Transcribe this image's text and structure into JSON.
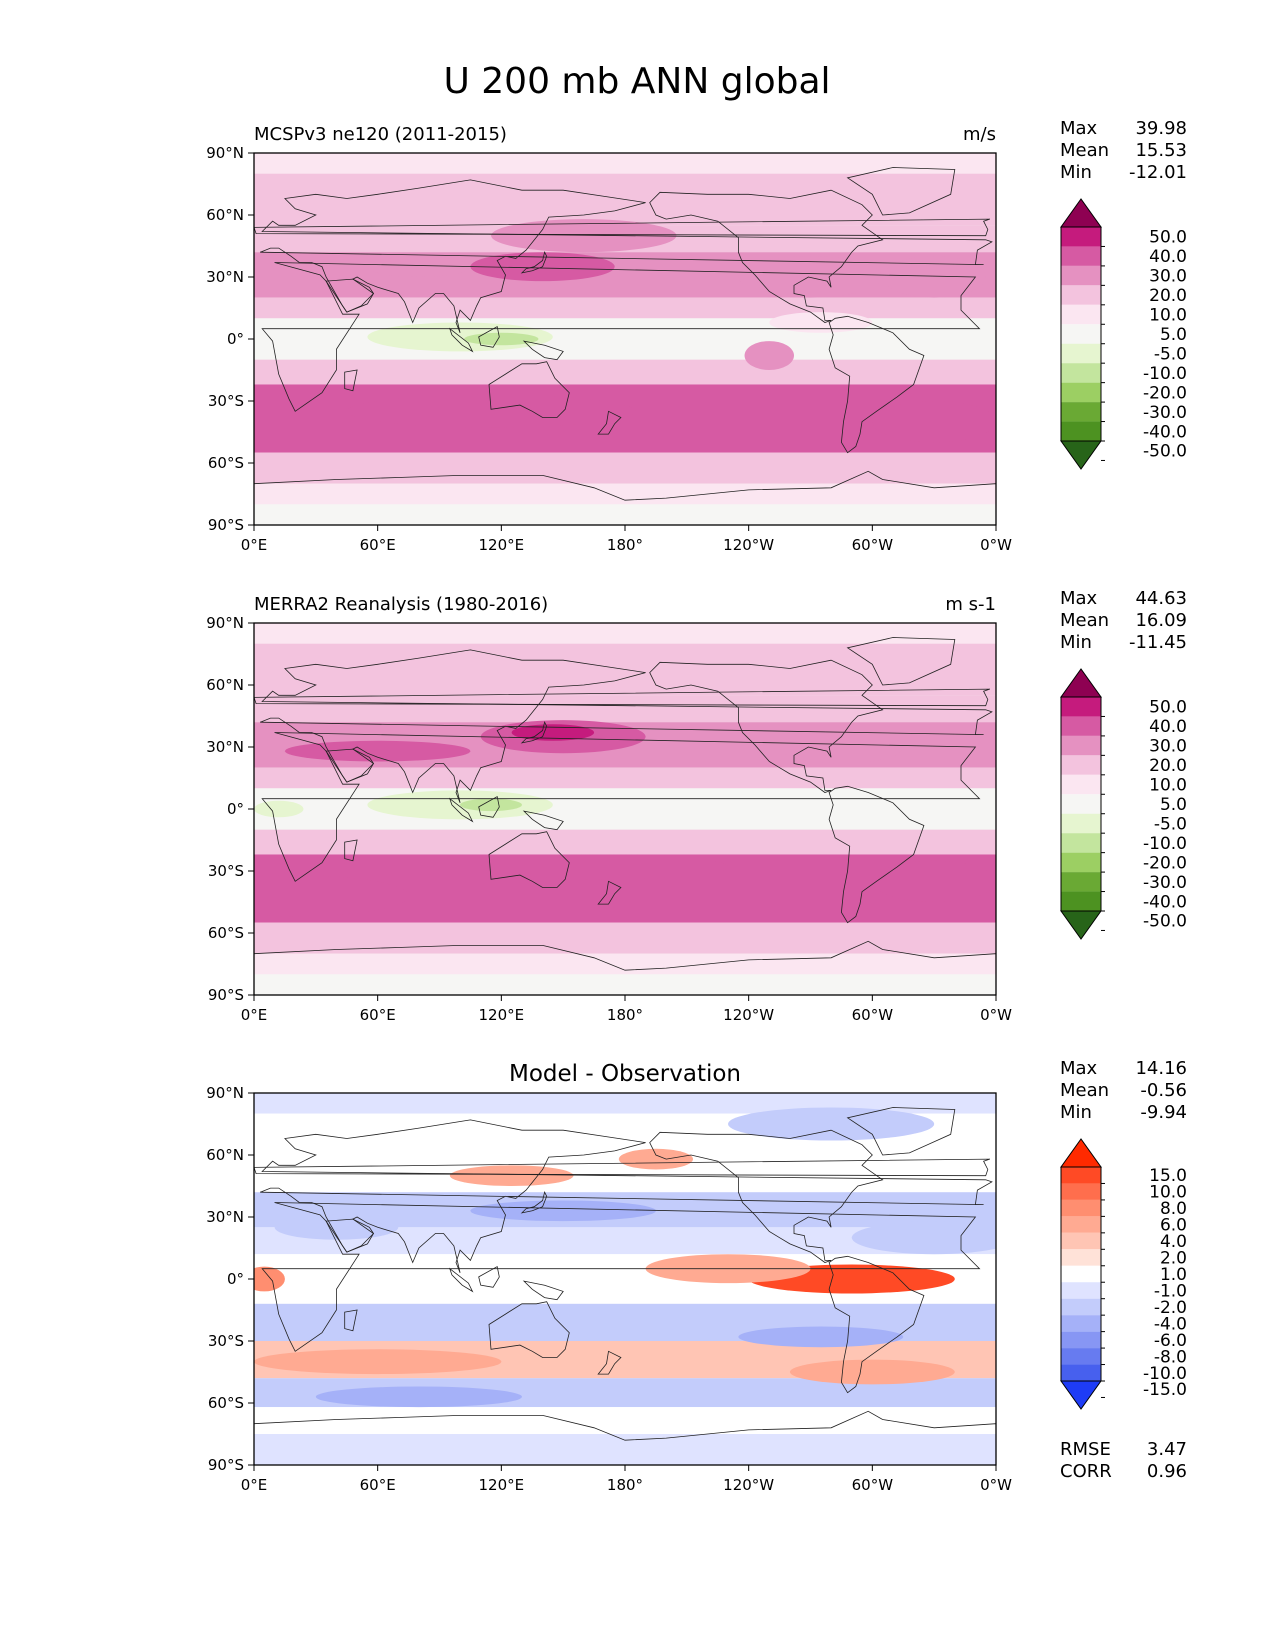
{
  "figure_title": "U 200 mb ANN global",
  "chart_data": [
    {
      "type": "heatmap",
      "panel": "test",
      "title_left": "MCSPv3 ne120 (2011-2015)",
      "title_center": "",
      "units": "m/s",
      "stats": [
        {
          "label": "Max",
          "value": "39.98"
        },
        {
          "label": "Mean",
          "value": "15.53"
        },
        {
          "label": "Min",
          "value": "-12.01"
        }
      ],
      "colorbar_labels": [
        "50.0",
        "40.0",
        "30.0",
        "20.0",
        "10.0",
        "5.0",
        "-5.0",
        "-10.0",
        "-20.0",
        "-30.0",
        "-40.0",
        "-50.0"
      ],
      "colorbar_colors": [
        "#8e0152",
        "#c51b7d",
        "#d65aa3",
        "#e591c1",
        "#f3c3de",
        "#fbe6f1",
        "#f6f6f4",
        "#e6f5d0",
        "#c3e59e",
        "#9ccf63",
        "#6aa934",
        "#4d9221",
        "#276419"
      ],
      "x_ticks": [
        "0°E",
        "60°E",
        "120°E",
        "180°",
        "120°W",
        "60°W",
        "0°W"
      ],
      "y_ticks": [
        "90°N",
        "60°N",
        "30°N",
        "0°",
        "30°S",
        "60°S",
        "90°S"
      ],
      "xlim": [
        0,
        360
      ],
      "ylim": [
        -90,
        90
      ],
      "bands": [
        {
          "lat": [
            80,
            90
          ],
          "value": 5
        },
        {
          "lat": [
            55,
            80
          ],
          "value": 15
        },
        {
          "lat": [
            42,
            55
          ],
          "value": 18
        },
        {
          "lat": [
            20,
            42
          ],
          "value": 24
        },
        {
          "lat": [
            10,
            20
          ],
          "value": 12
        },
        {
          "lat": [
            -10,
            10
          ],
          "value": 2
        },
        {
          "lat": [
            -22,
            -10
          ],
          "value": 12
        },
        {
          "lat": [
            -55,
            -22
          ],
          "value": 32
        },
        {
          "lat": [
            -70,
            -55
          ],
          "value": 18
        },
        {
          "lat": [
            -80,
            -70
          ],
          "value": 8
        },
        {
          "lat": [
            -90,
            -80
          ],
          "value": 2
        }
      ],
      "blobs": [
        {
          "lon": 140,
          "lat": 35,
          "dlon": 35,
          "dlat": 7,
          "value": 34
        },
        {
          "lon": 270,
          "lat": 30,
          "dlon": 35,
          "dlat": 10,
          "value": 25
        },
        {
          "lon": 330,
          "lat": 30,
          "dlon": 25,
          "dlat": 10,
          "value": 25
        },
        {
          "lon": 80,
          "lat": 35,
          "dlon": 25,
          "dlat": 5,
          "value": 26
        },
        {
          "lon": 100,
          "lat": 1,
          "dlon": 45,
          "dlat": 7,
          "value": -7
        },
        {
          "lon": 120,
          "lat": 0,
          "dlon": 18,
          "dlat": 3,
          "value": -12
        },
        {
          "lon": 160,
          "lat": 50,
          "dlon": 45,
          "dlat": 8,
          "value": 23
        },
        {
          "lon": 250,
          "lat": -8,
          "dlon": 12,
          "dlat": 7,
          "value": 22
        },
        {
          "lon": 330,
          "lat": -40,
          "dlon": 30,
          "dlat": 10,
          "value": 34
        },
        {
          "lon": 115,
          "lat": -35,
          "dlon": 70,
          "dlat": 8,
          "value": 33
        },
        {
          "lon": 275,
          "lat": 8,
          "dlon": 25,
          "dlat": 5,
          "value": 7
        }
      ]
    },
    {
      "type": "heatmap",
      "panel": "reference",
      "title_left": "MERRA2 Reanalysis (1980-2016)",
      "title_center": "",
      "units": "m s-1",
      "stats": [
        {
          "label": "Max",
          "value": "44.63"
        },
        {
          "label": "Mean",
          "value": "16.09"
        },
        {
          "label": "Min",
          "value": "-11.45"
        }
      ],
      "colorbar_labels": [
        "50.0",
        "40.0",
        "30.0",
        "20.0",
        "10.0",
        "5.0",
        "-5.0",
        "-10.0",
        "-20.0",
        "-30.0",
        "-40.0",
        "-50.0"
      ],
      "colorbar_colors": [
        "#8e0152",
        "#c51b7d",
        "#d65aa3",
        "#e591c1",
        "#f3c3de",
        "#fbe6f1",
        "#f6f6f4",
        "#e6f5d0",
        "#c3e59e",
        "#9ccf63",
        "#6aa934",
        "#4d9221",
        "#276419"
      ],
      "x_ticks": [
        "0°E",
        "60°E",
        "120°E",
        "180°",
        "120°W",
        "60°W",
        "0°W"
      ],
      "y_ticks": [
        "90°N",
        "60°N",
        "30°N",
        "0°",
        "30°S",
        "60°S",
        "90°S"
      ],
      "xlim": [
        0,
        360
      ],
      "ylim": [
        -90,
        90
      ],
      "bands": [
        {
          "lat": [
            80,
            90
          ],
          "value": 5
        },
        {
          "lat": [
            55,
            80
          ],
          "value": 15
        },
        {
          "lat": [
            42,
            55
          ],
          "value": 18
        },
        {
          "lat": [
            20,
            42
          ],
          "value": 25
        },
        {
          "lat": [
            10,
            20
          ],
          "value": 12
        },
        {
          "lat": [
            -10,
            10
          ],
          "value": 2
        },
        {
          "lat": [
            -22,
            -10
          ],
          "value": 12
        },
        {
          "lat": [
            -55,
            -22
          ],
          "value": 30
        },
        {
          "lat": [
            -70,
            -55
          ],
          "value": 17
        },
        {
          "lat": [
            -80,
            -70
          ],
          "value": 8
        },
        {
          "lat": [
            -90,
            -80
          ],
          "value": 2
        }
      ],
      "blobs": [
        {
          "lon": 150,
          "lat": 35,
          "dlon": 40,
          "dlat": 8,
          "value": 37
        },
        {
          "lon": 145,
          "lat": 37,
          "dlon": 20,
          "dlat": 4,
          "value": 42
        },
        {
          "lon": 60,
          "lat": 28,
          "dlon": 45,
          "dlat": 5,
          "value": 31
        },
        {
          "lon": 285,
          "lat": 30,
          "dlon": 30,
          "dlat": 8,
          "value": 27
        },
        {
          "lon": 100,
          "lat": 2,
          "dlon": 45,
          "dlat": 7,
          "value": -7
        },
        {
          "lon": 115,
          "lat": 2,
          "dlon": 15,
          "dlat": 3,
          "value": -12
        },
        {
          "lon": 170,
          "lat": -28,
          "dlon": 60,
          "dlat": 6,
          "value": 33
        },
        {
          "lon": 20,
          "lat": -42,
          "dlon": 55,
          "dlat": 10,
          "value": 34
        },
        {
          "lon": 330,
          "lat": -35,
          "dlon": 30,
          "dlat": 10,
          "value": 33
        },
        {
          "lon": 12,
          "lat": 0,
          "dlon": 12,
          "dlat": 4,
          "value": -7
        }
      ]
    },
    {
      "type": "heatmap",
      "panel": "difference",
      "title_left": "",
      "title_center": "Model - Observation",
      "units": "",
      "stats": [
        {
          "label": "Max",
          "value": "14.16"
        },
        {
          "label": "Mean",
          "value": "-0.56"
        },
        {
          "label": "Min",
          "value": "-9.94"
        }
      ],
      "extra_stats": [
        {
          "label": "RMSE",
          "value": "3.47"
        },
        {
          "label": "CORR",
          "value": "0.96"
        }
      ],
      "colorbar_labels": [
        "15.0",
        "10.0",
        "8.0",
        "6.0",
        "4.0",
        "2.0",
        "1.0",
        "-1.0",
        "-2.0",
        "-4.0",
        "-6.0",
        "-8.0",
        "-10.0",
        "-15.0"
      ],
      "colorbar_colors": [
        "#ff2a00",
        "#ff4a25",
        "#ff6e4d",
        "#ff8e70",
        "#ffaa92",
        "#ffc5b4",
        "#ffe2d8",
        "#ffffff",
        "#dfe3ff",
        "#c3ccfb",
        "#a5b1f8",
        "#8796f4",
        "#677bf0",
        "#4760ee",
        "#1e3cf6"
      ],
      "x_ticks": [
        "0°E",
        "60°E",
        "120°E",
        "180°",
        "120°W",
        "60°W",
        "0°W"
      ],
      "y_ticks": [
        "90°N",
        "60°N",
        "30°N",
        "0°",
        "30°S",
        "60°S",
        "90°S"
      ],
      "xlim": [
        0,
        360
      ],
      "ylim": [
        -90,
        90
      ],
      "bands": [
        {
          "lat": [
            80,
            90
          ],
          "value": -1.5
        },
        {
          "lat": [
            58,
            80
          ],
          "value": 0
        },
        {
          "lat": [
            42,
            58
          ],
          "value": 0.5
        },
        {
          "lat": [
            25,
            42
          ],
          "value": -3
        },
        {
          "lat": [
            12,
            25
          ],
          "value": -1.5
        },
        {
          "lat": [
            -12,
            12
          ],
          "value": 0
        },
        {
          "lat": [
            -30,
            -12
          ],
          "value": -2.5
        },
        {
          "lat": [
            -48,
            -30
          ],
          "value": 3
        },
        {
          "lat": [
            -62,
            -48
          ],
          "value": -3
        },
        {
          "lat": [
            -75,
            -62
          ],
          "value": 0
        },
        {
          "lat": [
            -90,
            -75
          ],
          "value": -1.5
        }
      ],
      "blobs": [
        {
          "lon": 290,
          "lat": 0,
          "dlon": 50,
          "dlat": 7,
          "value": 11
        },
        {
          "lon": 230,
          "lat": 5,
          "dlon": 40,
          "dlat": 7,
          "value": 5
        },
        {
          "lon": 275,
          "lat": -28,
          "dlon": 40,
          "dlat": 5,
          "value": -6
        },
        {
          "lon": 150,
          "lat": 33,
          "dlon": 45,
          "dlat": 5,
          "value": -6
        },
        {
          "lon": 300,
          "lat": -45,
          "dlon": 40,
          "dlat": 6,
          "value": 5
        },
        {
          "lon": 60,
          "lat": -40,
          "dlon": 60,
          "dlat": 6,
          "value": 5
        },
        {
          "lon": 125,
          "lat": 50,
          "dlon": 30,
          "dlat": 5,
          "value": 4
        },
        {
          "lon": 195,
          "lat": 58,
          "dlon": 18,
          "dlat": 5,
          "value": 4
        },
        {
          "lon": 5,
          "lat": 0,
          "dlon": 10,
          "dlat": 6,
          "value": 6
        },
        {
          "lon": 280,
          "lat": 75,
          "dlon": 50,
          "dlat": 8,
          "value": -3
        },
        {
          "lon": 80,
          "lat": -57,
          "dlon": 50,
          "dlat": 5,
          "value": -5
        },
        {
          "lon": 330,
          "lat": 20,
          "dlon": 40,
          "dlat": 8,
          "value": -4
        },
        {
          "lon": 40,
          "lat": 25,
          "dlon": 30,
          "dlat": 6,
          "value": -4
        }
      ]
    }
  ]
}
